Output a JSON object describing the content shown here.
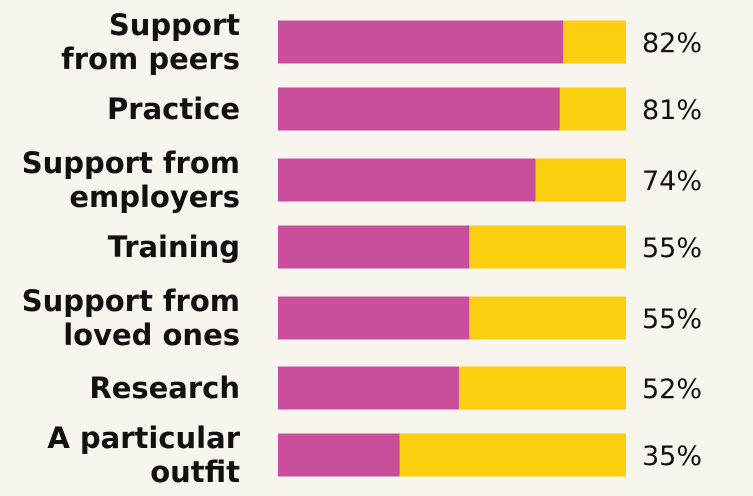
{
  "chart_data": {
    "type": "bar",
    "orientation": "horizontal",
    "stacked": true,
    "categories": [
      [
        "Support",
        "from peers"
      ],
      [
        "Practice"
      ],
      [
        "Support from",
        "employers"
      ],
      [
        "Training"
      ],
      [
        "Support from",
        "loved ones"
      ],
      [
        "Research"
      ],
      [
        "A particular",
        "outfit"
      ]
    ],
    "values": [
      82,
      81,
      74,
      55,
      55,
      52,
      35
    ],
    "value_labels": [
      "82%",
      "81%",
      "74%",
      "55%",
      "55%",
      "52%",
      "35%"
    ],
    "xlim": [
      0,
      100
    ],
    "title": "",
    "xlabel": "",
    "ylabel": "",
    "grid": false,
    "legend": "none",
    "colors": {
      "value": "#c94f9c",
      "remainder": "#f9cf0f",
      "background": "#f8f5ee",
      "text": "#111111"
    }
  }
}
